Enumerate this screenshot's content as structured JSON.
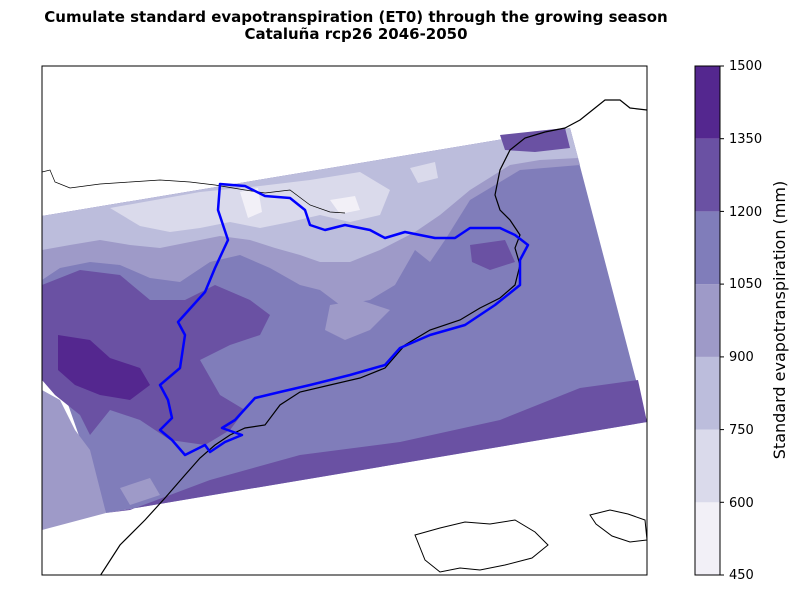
{
  "title": {
    "line1": "Cumulate standard evapotranspiration (ET0) through the growing season",
    "line2": "Cataluña rcp26 2046-2050"
  },
  "colorbar": {
    "label": "Standard evapotranspiration (mm)",
    "ticks": [
      "450",
      "600",
      "750",
      "900",
      "1050",
      "1200",
      "1350",
      "1500"
    ],
    "bins": [
      {
        "from": 450,
        "to": 600,
        "color": "#f2f0f7"
      },
      {
        "from": 600,
        "to": 750,
        "color": "#dadaeb"
      },
      {
        "from": 750,
        "to": 900,
        "color": "#bcbddc"
      },
      {
        "from": 900,
        "to": 1050,
        "color": "#9e9ac8"
      },
      {
        "from": 1050,
        "to": 1200,
        "color": "#807dba"
      },
      {
        "from": 1200,
        "to": 1350,
        "color": "#6a51a3"
      },
      {
        "from": 1350,
        "to": 1500,
        "color": "#54278f"
      }
    ]
  },
  "colors": {
    "region_outline": "#0000ff",
    "coastline": "#000000"
  }
}
